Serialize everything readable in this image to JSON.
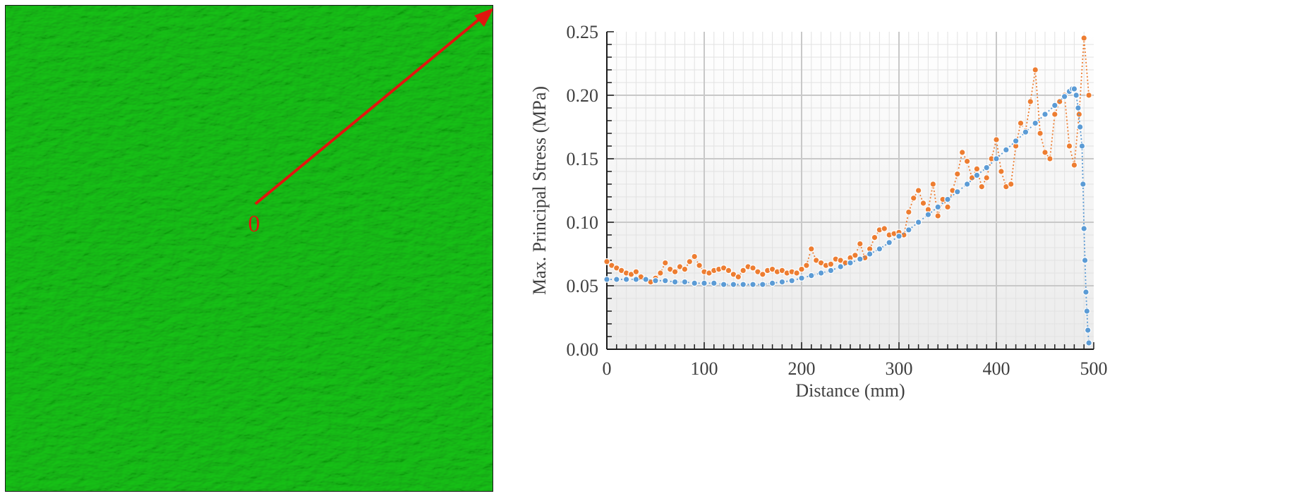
{
  "left_panel": {
    "origin_label": "0",
    "contour_color": "#17c417",
    "arrow_color": "#e0160e"
  },
  "chart_data": {
    "type": "scatter",
    "xlabel": "Distance (mm)",
    "ylabel": "Max. Principal Stress (MPa)",
    "xlim": [
      0,
      500
    ],
    "ylim": [
      0,
      0.25
    ],
    "xticks": [
      "0",
      "100",
      "200",
      "300",
      "400",
      "500"
    ],
    "yticks": [
      "0.00",
      "0.05",
      "0.10",
      "0.15",
      "0.20",
      "0.25"
    ],
    "grid": true,
    "legend": "none",
    "series": [
      {
        "color": "#ed7d31",
        "line": "dotted",
        "x": [
          0,
          5,
          10,
          15,
          20,
          25,
          30,
          35,
          40,
          45,
          50,
          55,
          60,
          65,
          70,
          75,
          80,
          85,
          90,
          95,
          100,
          105,
          110,
          115,
          120,
          125,
          130,
          135,
          140,
          145,
          150,
          155,
          160,
          165,
          170,
          175,
          180,
          185,
          190,
          195,
          200,
          205,
          210,
          215,
          220,
          225,
          230,
          235,
          240,
          245,
          250,
          255,
          260,
          265,
          270,
          275,
          280,
          285,
          290,
          295,
          300,
          305,
          310,
          315,
          320,
          325,
          330,
          335,
          340,
          345,
          350,
          355,
          360,
          365,
          370,
          375,
          380,
          385,
          390,
          395,
          400,
          405,
          410,
          415,
          420,
          425,
          430,
          435,
          440,
          445,
          450,
          455,
          460,
          465,
          470,
          475,
          480,
          485,
          490,
          495
        ],
        "y": [
          0.069,
          0.066,
          0.064,
          0.062,
          0.06,
          0.059,
          0.061,
          0.057,
          0.055,
          0.053,
          0.056,
          0.06,
          0.068,
          0.063,
          0.061,
          0.065,
          0.063,
          0.069,
          0.073,
          0.066,
          0.061,
          0.06,
          0.062,
          0.063,
          0.064,
          0.062,
          0.059,
          0.057,
          0.062,
          0.065,
          0.064,
          0.061,
          0.059,
          0.062,
          0.063,
          0.061,
          0.062,
          0.06,
          0.061,
          0.06,
          0.063,
          0.066,
          0.079,
          0.07,
          0.068,
          0.066,
          0.067,
          0.071,
          0.07,
          0.068,
          0.072,
          0.074,
          0.083,
          0.072,
          0.079,
          0.088,
          0.094,
          0.095,
          0.09,
          0.091,
          0.092,
          0.09,
          0.108,
          0.119,
          0.125,
          0.115,
          0.11,
          0.13,
          0.105,
          0.118,
          0.112,
          0.125,
          0.138,
          0.155,
          0.148,
          0.135,
          0.142,
          0.128,
          0.135,
          0.15,
          0.165,
          0.14,
          0.128,
          0.13,
          0.16,
          0.178,
          0.172,
          0.195,
          0.22,
          0.17,
          0.155,
          0.15,
          0.185,
          0.195,
          0.2,
          0.16,
          0.145,
          0.185,
          0.245,
          0.2
        ]
      },
      {
        "color": "#5b9bd5",
        "line": "dotted",
        "x": [
          0,
          10,
          20,
          30,
          40,
          50,
          60,
          70,
          80,
          90,
          100,
          110,
          120,
          130,
          140,
          150,
          160,
          170,
          180,
          190,
          200,
          210,
          220,
          230,
          240,
          250,
          260,
          270,
          280,
          290,
          300,
          310,
          320,
          330,
          340,
          350,
          360,
          370,
          380,
          390,
          400,
          410,
          420,
          430,
          440,
          450,
          460,
          470,
          475,
          478,
          480,
          482,
          484,
          486,
          488,
          489,
          490,
          491,
          492,
          493,
          494,
          495
        ],
        "y": [
          0.055,
          0.055,
          0.055,
          0.055,
          0.055,
          0.054,
          0.054,
          0.053,
          0.053,
          0.052,
          0.052,
          0.052,
          0.051,
          0.051,
          0.051,
          0.051,
          0.051,
          0.052,
          0.053,
          0.054,
          0.056,
          0.058,
          0.06,
          0.062,
          0.065,
          0.068,
          0.071,
          0.075,
          0.079,
          0.084,
          0.089,
          0.094,
          0.1,
          0.106,
          0.112,
          0.118,
          0.124,
          0.13,
          0.137,
          0.143,
          0.15,
          0.157,
          0.164,
          0.171,
          0.178,
          0.185,
          0.192,
          0.199,
          0.203,
          0.205,
          0.205,
          0.2,
          0.19,
          0.175,
          0.16,
          0.13,
          0.095,
          0.07,
          0.045,
          0.03,
          0.015,
          0.005
        ]
      }
    ]
  }
}
